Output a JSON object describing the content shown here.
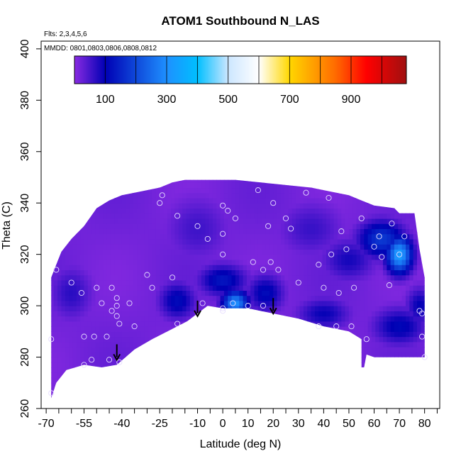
{
  "chart_data": {
    "type": "heatmap",
    "title": "ATOM1 Southbound N_LAS",
    "subtitle_flights": "Flts: 2,3,4,5,6",
    "subtitle_dates": "MMDD: 0801,0803,0806,0808,0812",
    "xlabel": "Latitude (deg N)",
    "ylabel": "Theta (C)",
    "xlim": [
      -72,
      86
    ],
    "ylim": [
      260,
      403
    ],
    "x_tick_labels": [
      "-70",
      "-55",
      "-40",
      "-25",
      "-10",
      "0",
      "10",
      "20",
      "30",
      "40",
      "50",
      "60",
      "70",
      "80"
    ],
    "x_tick_values": [
      -70,
      -55,
      -40,
      -25,
      -10,
      0,
      10,
      20,
      30,
      40,
      50,
      60,
      70,
      80
    ],
    "x_minor_ticks": [
      -70,
      -65,
      -60,
      -55,
      -50,
      -45,
      -40,
      -35,
      -30,
      -25,
      -20,
      -15,
      -10,
      -5,
      0,
      5,
      10,
      15,
      20,
      25,
      30,
      35,
      40,
      45,
      50,
      55,
      60,
      65,
      70,
      75,
      80,
      85
    ],
    "y_tick_values": [
      260,
      280,
      300,
      320,
      340,
      360,
      380,
      400
    ],
    "y_tick_labels": [
      "260",
      "280",
      "300",
      "320",
      "340",
      "360",
      "380",
      "400"
    ],
    "colorbar": {
      "range": [
        0,
        1080
      ],
      "tick_values": [
        100,
        300,
        500,
        700,
        900
      ],
      "tick_labels": [
        "100",
        "300",
        "500",
        "700",
        "900"
      ],
      "segment_edges": [
        0,
        100,
        200,
        300,
        400,
        500,
        600,
        700,
        800,
        900,
        1000,
        1080
      ],
      "stops": [
        {
          "v": 0,
          "color": "#8a2be2"
        },
        {
          "v": 100,
          "color": "#0000b4"
        },
        {
          "v": 300,
          "color": "#1e90ff"
        },
        {
          "v": 400,
          "color": "#00bfff"
        },
        {
          "v": 500,
          "color": "#cce6ff"
        },
        {
          "v": 600,
          "color": "#ffffff"
        },
        {
          "v": 700,
          "color": "#ffd700"
        },
        {
          "v": 850,
          "color": "#ff6a00"
        },
        {
          "v": 950,
          "color": "#ff0000"
        },
        {
          "v": 1080,
          "color": "#a01010"
        }
      ]
    },
    "boundary_bottom": [
      [
        -68,
        264
      ],
      [
        -66,
        270
      ],
      [
        -62,
        275
      ],
      [
        -55,
        277
      ],
      [
        -48,
        276
      ],
      [
        -42,
        277
      ],
      [
        -35,
        283
      ],
      [
        -28,
        287
      ],
      [
        -20,
        291
      ],
      [
        -14,
        294
      ],
      [
        -10,
        297
      ],
      [
        -6,
        300
      ],
      [
        0,
        299
      ],
      [
        10,
        299
      ],
      [
        20,
        297
      ],
      [
        30,
        295
      ],
      [
        40,
        292
      ],
      [
        50,
        290
      ],
      [
        55,
        287
      ],
      [
        55,
        276
      ],
      [
        56,
        276
      ],
      [
        57,
        281
      ],
      [
        60,
        280
      ],
      [
        70,
        280
      ],
      [
        80,
        280
      ]
    ],
    "boundary_top": [
      [
        80,
        311
      ],
      [
        78,
        322
      ],
      [
        76,
        336
      ],
      [
        70,
        336
      ],
      [
        68,
        338
      ],
      [
        60,
        339
      ],
      [
        55,
        341
      ],
      [
        50,
        343
      ],
      [
        45,
        344
      ],
      [
        35,
        346
      ],
      [
        25,
        347
      ],
      [
        15,
        348
      ],
      [
        5,
        349
      ],
      [
        -5,
        349
      ],
      [
        -10,
        349
      ],
      [
        -15,
        349
      ],
      [
        -20,
        348
      ],
      [
        -25,
        346
      ],
      [
        -30,
        345
      ],
      [
        -35,
        344
      ],
      [
        -40,
        343
      ],
      [
        -45,
        341
      ],
      [
        -50,
        338
      ],
      [
        -55,
        331
      ],
      [
        -60,
        326
      ],
      [
        -64,
        321
      ],
      [
        -66,
        316
      ],
      [
        -68,
        311
      ]
    ],
    "hotspots": [
      {
        "x": 70,
        "y": 320,
        "value": 330,
        "sx": 5,
        "sy": 7
      },
      {
        "x": 5,
        "y": 301,
        "value": 300,
        "sx": 5,
        "sy": 5
      },
      {
        "x": 63,
        "y": 326,
        "value": 180,
        "sx": 9,
        "sy": 7
      },
      {
        "x": -18,
        "y": 302,
        "value": 115,
        "sx": 7,
        "sy": 7
      },
      {
        "x": 0,
        "y": 310,
        "value": 130,
        "sx": 9,
        "sy": 6
      },
      {
        "x": 17,
        "y": 305,
        "value": 115,
        "sx": 7,
        "sy": 7
      },
      {
        "x": 40,
        "y": 297,
        "value": 95,
        "sx": 10,
        "sy": 6
      },
      {
        "x": 70,
        "y": 292,
        "value": 110,
        "sx": 10,
        "sy": 7
      },
      {
        "x": 78,
        "y": 300,
        "value": 100,
        "sx": 5,
        "sy": 7
      },
      {
        "x": 50,
        "y": 318,
        "value": 85,
        "sx": 10,
        "sy": 8
      },
      {
        "x": -60,
        "y": 305,
        "value": 70,
        "sx": 8,
        "sy": 10
      },
      {
        "x": -10,
        "y": 330,
        "value": 55,
        "sx": 12,
        "sy": 12
      },
      {
        "x": 35,
        "y": 330,
        "value": 60,
        "sx": 12,
        "sy": 10
      }
    ],
    "observations": [
      [
        -68,
        287
      ],
      [
        -68,
        266
      ],
      [
        -66,
        314
      ],
      [
        -60,
        309
      ],
      [
        -56,
        305
      ],
      [
        -55,
        288
      ],
      [
        -55,
        277
      ],
      [
        -52,
        279
      ],
      [
        -51,
        288
      ],
      [
        -50,
        307
      ],
      [
        -48,
        301
      ],
      [
        -46,
        288
      ],
      [
        -45,
        279
      ],
      [
        -44,
        307
      ],
      [
        -44,
        298
      ],
      [
        -42,
        303
      ],
      [
        -42,
        300
      ],
      [
        -42,
        296
      ],
      [
        -41,
        293
      ],
      [
        -41,
        278
      ],
      [
        -37,
        301
      ],
      [
        -35,
        292
      ],
      [
        -30,
        312
      ],
      [
        -28,
        307
      ],
      [
        -25,
        340
      ],
      [
        -24,
        343
      ],
      [
        -20,
        311
      ],
      [
        -18,
        293
      ],
      [
        -18,
        335
      ],
      [
        -10,
        331
      ],
      [
        -8,
        301
      ],
      [
        -6,
        326
      ],
      [
        0,
        339
      ],
      [
        0,
        328
      ],
      [
        0,
        320
      ],
      [
        0,
        299
      ],
      [
        0,
        298
      ],
      [
        2,
        337
      ],
      [
        4,
        301
      ],
      [
        5,
        334
      ],
      [
        10,
        300
      ],
      [
        12,
        317
      ],
      [
        14,
        345
      ],
      [
        16,
        314
      ],
      [
        16,
        300
      ],
      [
        18,
        331
      ],
      [
        19,
        317
      ],
      [
        20,
        340
      ],
      [
        22,
        314
      ],
      [
        25,
        334
      ],
      [
        27,
        330
      ],
      [
        30,
        309
      ],
      [
        33,
        344
      ],
      [
        38,
        316
      ],
      [
        38,
        292
      ],
      [
        40,
        307
      ],
      [
        42,
        342
      ],
      [
        43,
        320
      ],
      [
        45,
        292
      ],
      [
        46,
        305
      ],
      [
        47,
        329
      ],
      [
        49,
        322
      ],
      [
        51,
        292
      ],
      [
        52,
        307
      ],
      [
        55,
        334
      ],
      [
        57,
        287
      ],
      [
        60,
        323
      ],
      [
        62,
        327
      ],
      [
        63,
        319
      ],
      [
        66,
        308
      ],
      [
        67,
        332
      ],
      [
        70,
        320
      ],
      [
        72,
        327
      ],
      [
        78,
        298
      ],
      [
        79,
        297
      ],
      [
        79,
        288
      ],
      [
        80,
        280
      ]
    ],
    "markers": [
      {
        "x": -10,
        "y": 302
      },
      {
        "x": 20,
        "y": 303
      },
      {
        "x": -42,
        "y": 285
      }
    ]
  }
}
